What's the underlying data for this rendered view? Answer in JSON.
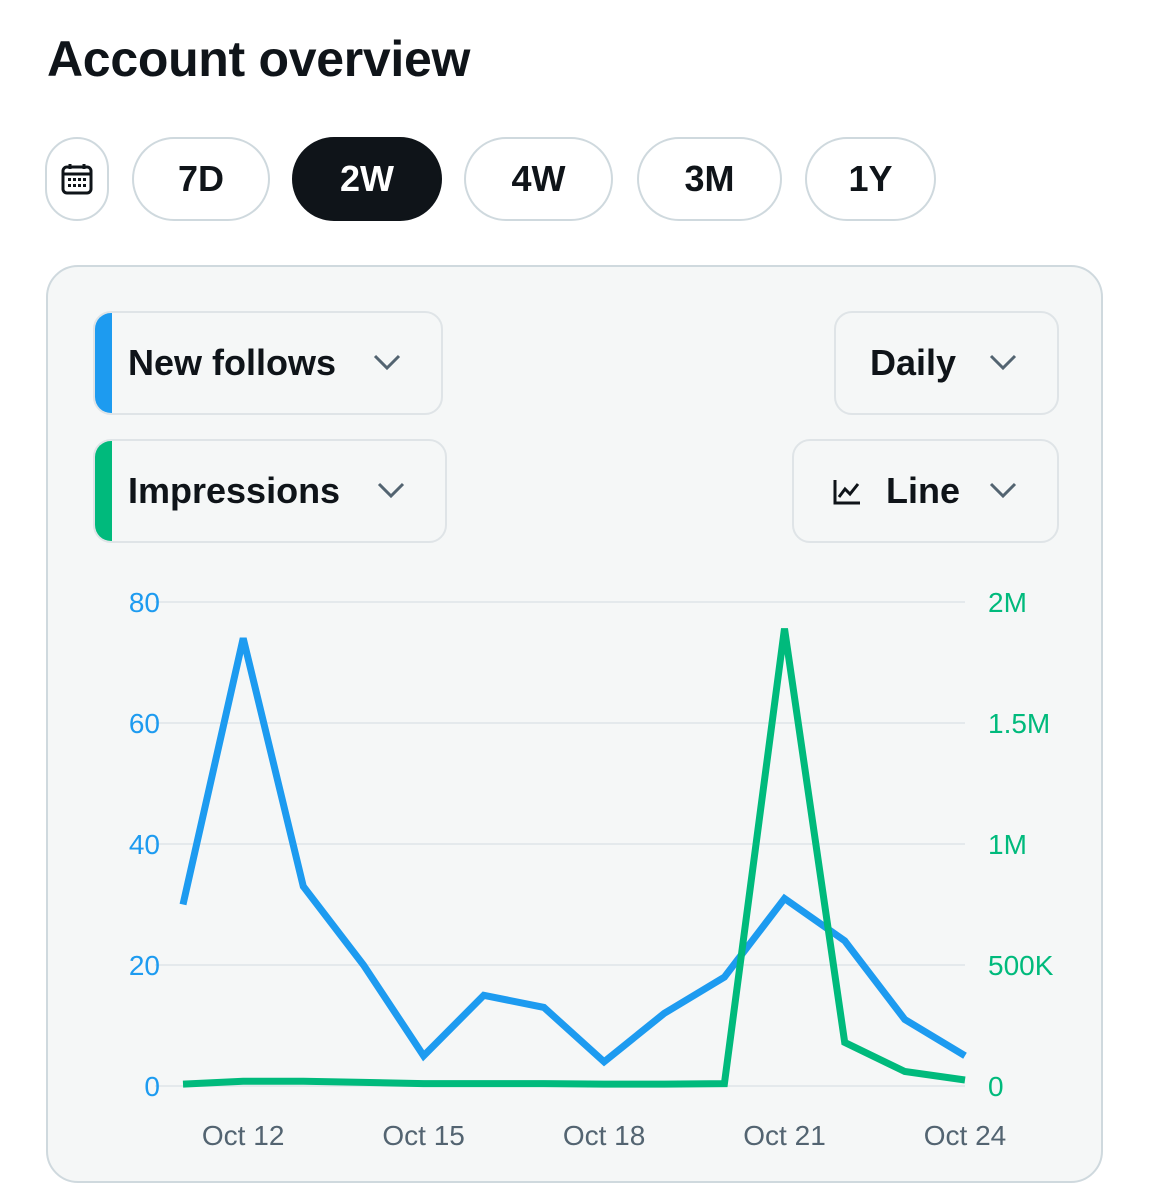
{
  "page": {
    "title": "Account overview"
  },
  "time_range": {
    "calendar_icon": "calendar-icon",
    "options": [
      "7D",
      "2W",
      "4W",
      "3M",
      "1Y"
    ],
    "selected": "2W"
  },
  "controls": {
    "metric_primary": {
      "label": "New follows",
      "color": "#1d9bf0"
    },
    "metric_secondary": {
      "label": "Impressions",
      "color": "#00ba7c"
    },
    "interval": {
      "label": "Daily"
    },
    "chart_type": {
      "label": "Line",
      "icon": "line-chart-icon"
    },
    "dropdown_icon": "chevron-down-icon"
  },
  "chart_data": {
    "type": "line",
    "title": "",
    "x": [
      "Oct 11",
      "Oct 12",
      "Oct 13",
      "Oct 14",
      "Oct 15",
      "Oct 16",
      "Oct 17",
      "Oct 18",
      "Oct 19",
      "Oct 20",
      "Oct 21",
      "Oct 22",
      "Oct 23",
      "Oct 24"
    ],
    "x_tick_labels": [
      "Oct 12",
      "Oct 15",
      "Oct 18",
      "Oct 21",
      "Oct 24"
    ],
    "y_left": {
      "ticks": [
        "0",
        "20",
        "40",
        "60",
        "80"
      ],
      "range": [
        0,
        80
      ],
      "color": "#1d9bf0"
    },
    "y_right": {
      "ticks": [
        "0",
        "500K",
        "1M",
        "1.5M",
        "2M"
      ],
      "range": [
        0,
        2000000
      ],
      "color": "#00ba7c"
    },
    "grid": true,
    "series": [
      {
        "name": "New follows",
        "axis": "left",
        "color": "#1d9bf0",
        "values": [
          30,
          74,
          33,
          20,
          5,
          15,
          13,
          4,
          12,
          18,
          31,
          24,
          11,
          5
        ]
      },
      {
        "name": "Impressions",
        "axis": "right",
        "color": "#00ba7c",
        "values": [
          8000,
          20000,
          20000,
          15000,
          10000,
          10000,
          10000,
          8000,
          8000,
          10000,
          1890000,
          180000,
          60000,
          25000
        ]
      }
    ]
  }
}
